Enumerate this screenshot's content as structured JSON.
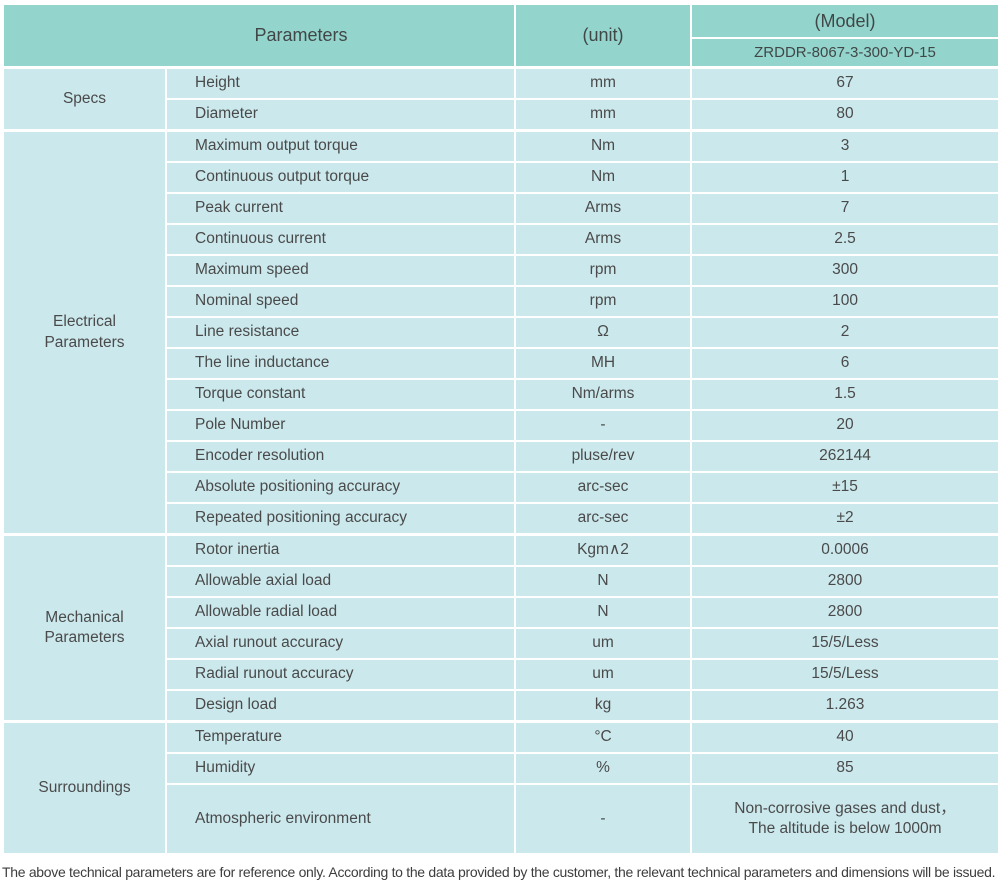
{
  "header": {
    "parameters_label": "Parameters",
    "unit_label": "(unit)",
    "model_label": "(Model)",
    "model_value": "ZRDDR-8067-3-300-YD-15"
  },
  "sections": [
    {
      "category": "Specs",
      "rows": [
        {
          "param": "Height",
          "unit": "mm",
          "value": "67"
        },
        {
          "param": "Diameter",
          "unit": "mm",
          "value": "80"
        }
      ]
    },
    {
      "category": "Electrical\nParameters",
      "rows": [
        {
          "param": "Maximum output torque",
          "unit": "Nm",
          "value": "3"
        },
        {
          "param": "Continuous output torque",
          "unit": "Nm",
          "value": "1"
        },
        {
          "param": "Peak current",
          "unit": "Arms",
          "value": "7"
        },
        {
          "param": "Continuous current",
          "unit": "Arms",
          "value": "2.5"
        },
        {
          "param": "Maximum speed",
          "unit": "rpm",
          "value": "300"
        },
        {
          "param": "Nominal speed",
          "unit": "rpm",
          "value": "100"
        },
        {
          "param": "Line resistance",
          "unit": "Ω",
          "value": "2"
        },
        {
          "param": "The line inductance",
          "unit": "MH",
          "value": "6"
        },
        {
          "param": "Torque constant",
          "unit": "Nm/arms",
          "value": "1.5"
        },
        {
          "param": "Pole Number",
          "unit": "-",
          "value": "20"
        },
        {
          "param": "Encoder resolution",
          "unit": "pluse/rev",
          "value": "262144"
        },
        {
          "param": "Absolute positioning accuracy",
          "unit": "arc-sec",
          "value": "±15"
        },
        {
          "param": "Repeated positioning accuracy",
          "unit": "arc-sec",
          "value": "±2"
        }
      ]
    },
    {
      "category": "Mechanical\nParameters",
      "rows": [
        {
          "param": "Rotor inertia",
          "unit": "Kgm∧2",
          "value": "0.0006"
        },
        {
          "param": "Allowable axial load",
          "unit": "N",
          "value": "2800"
        },
        {
          "param": "Allowable radial load",
          "unit": "N",
          "value": "2800"
        },
        {
          "param": "Axial runout accuracy",
          "unit": "um",
          "value": "15/5/Less"
        },
        {
          "param": "Radial runout accuracy",
          "unit": "um",
          "value": "15/5/Less"
        },
        {
          "param": "Design load",
          "unit": "kg",
          "value": "1.263"
        }
      ]
    },
    {
      "category": "Surroundings",
      "rows": [
        {
          "param": "Temperature",
          "unit": "°C",
          "value": "40"
        },
        {
          "param": "Humidity",
          "unit": "%",
          "value": "85"
        },
        {
          "param": "Atmospheric environment",
          "unit": "-",
          "value": "Non-corrosive gases and dust，\nThe altitude is below 1000m"
        }
      ]
    }
  ],
  "footer": {
    "note": "The above technical parameters are for reference only. According to the data provided by the customer, the relevant technical parameters and dimensions will be issued."
  },
  "colors": {
    "header_bg": "#93d5cc",
    "row_bg": "#cbe8ec",
    "grid": "#ffffff",
    "text": "#4a4a4a"
  }
}
